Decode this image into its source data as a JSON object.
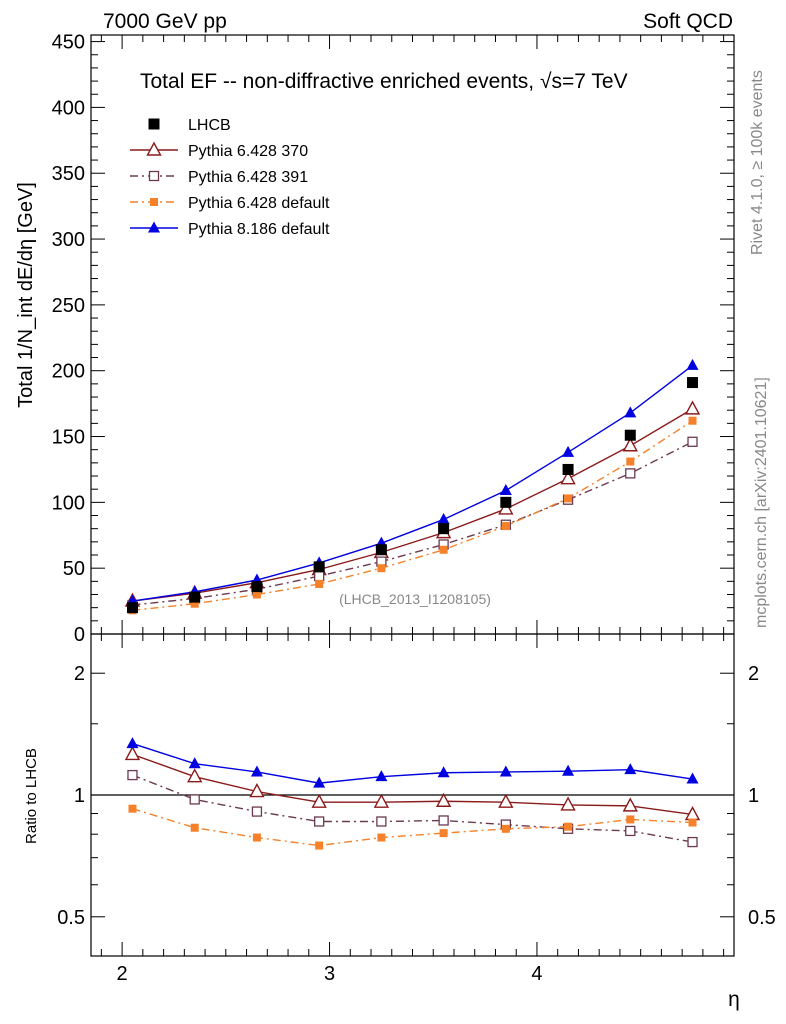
{
  "header": {
    "left": "7000 GeV pp",
    "right": "Soft QCD"
  },
  "side_labels": {
    "rivet": "Rivet 4.1.0, ≥ 100k events",
    "mcplots": "mcplots.cern.ch [arXiv:2401.10621]"
  },
  "colors": {
    "LHCB": "#000000",
    "Pythia 6.428 370": "#8b1a1a",
    "Pythia 6.428 391": "#6b3a50",
    "Pythia 6.428 default": "#f5822a",
    "Pythia 8.186 default": "#0000e0"
  },
  "chart_data": [
    {
      "type": "line",
      "panel": "main",
      "title": "Total EF -- non-diffractive enriched events, √s=7 TeV",
      "xlabel": "η",
      "ylabel": "Total 1/N_int  dE/dη [GeV]",
      "ylim": [
        0,
        455
      ],
      "xlim": [
        1.85,
        4.95
      ],
      "yticks": [
        0,
        50,
        100,
        150,
        200,
        250,
        300,
        350,
        400,
        450
      ],
      "watermark": "(LHCB_2013_I1208105)",
      "x": [
        2.05,
        2.35,
        2.65,
        2.95,
        3.25,
        3.55,
        3.85,
        4.15,
        4.45,
        4.75
      ],
      "series": [
        {
          "name": "LHCB",
          "marker": "square-filled",
          "line": "none",
          "values": [
            20,
            28,
            36,
            51,
            64,
            80,
            100,
            125,
            151,
            191
          ]
        },
        {
          "name": "Pythia 6.428 370",
          "marker": "triangle-open",
          "line": "solid",
          "values": [
            25,
            31,
            39,
            49,
            62,
            77,
            95,
            118,
            143,
            171
          ]
        },
        {
          "name": "Pythia 6.428 391",
          "marker": "square-open",
          "line": "dashdot",
          "values": [
            22,
            27,
            34,
            44,
            55,
            68,
            83,
            102,
            122,
            146
          ]
        },
        {
          "name": "Pythia 6.428 default",
          "marker": "square-filled-small",
          "line": "dashdot",
          "values": [
            18,
            23,
            30,
            38,
            50,
            64,
            82,
            103,
            131,
            162
          ]
        },
        {
          "name": "Pythia 8.186 default",
          "marker": "triangle-filled",
          "line": "solid",
          "values": [
            25,
            32,
            41,
            54,
            69,
            87,
            109,
            138,
            168,
            204
          ]
        }
      ]
    },
    {
      "type": "line",
      "panel": "ratio",
      "xlabel": "η",
      "ylabel": "Ratio to LHCB",
      "yscale": "log",
      "ylim": [
        0.4,
        2.5
      ],
      "yticks": [
        0.5,
        1,
        2
      ],
      "xticks": [
        2,
        3,
        4
      ],
      "x": [
        2.05,
        2.35,
        2.65,
        2.95,
        3.25,
        3.55,
        3.85,
        4.15,
        4.45,
        4.75
      ],
      "series": [
        {
          "name": "Pythia 6.428 370",
          "values": [
            1.26,
            1.11,
            1.02,
            0.96,
            0.96,
            0.965,
            0.96,
            0.945,
            0.94,
            0.895
          ]
        },
        {
          "name": "Pythia 6.428 391",
          "values": [
            1.12,
            0.975,
            0.91,
            0.86,
            0.86,
            0.865,
            0.845,
            0.825,
            0.815,
            0.765
          ]
        },
        {
          "name": "Pythia 6.428 default",
          "values": [
            0.925,
            0.83,
            0.785,
            0.75,
            0.785,
            0.805,
            0.825,
            0.835,
            0.87,
            0.855
          ]
        },
        {
          "name": "Pythia 8.186 default",
          "values": [
            1.34,
            1.195,
            1.14,
            1.07,
            1.11,
            1.135,
            1.14,
            1.145,
            1.155,
            1.095
          ]
        }
      ]
    }
  ]
}
